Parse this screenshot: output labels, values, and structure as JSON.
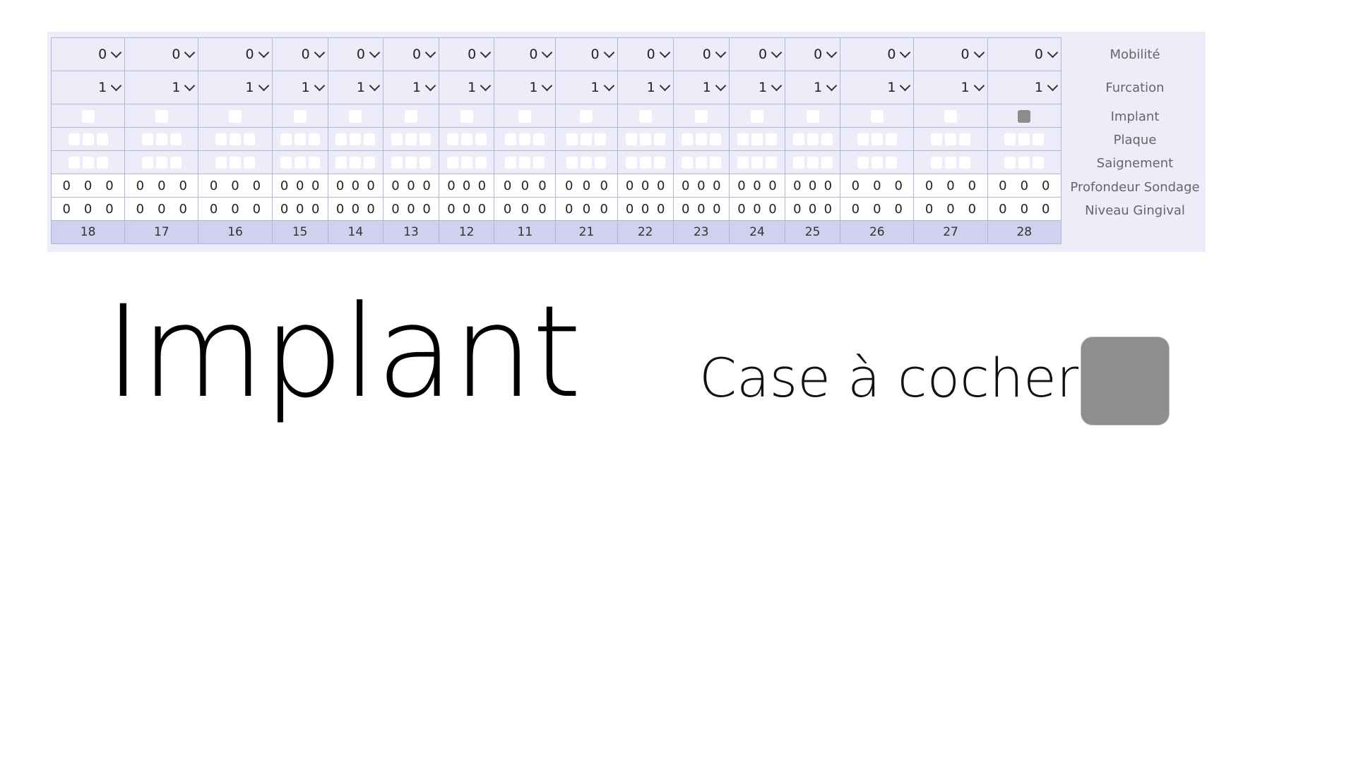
{
  "teeth": [
    "18",
    "17",
    "16",
    "15",
    "14",
    "13",
    "12",
    "11",
    "21",
    "22",
    "23",
    "24",
    "25",
    "26",
    "27",
    "28"
  ],
  "row_labels": {
    "mobilite": "Mobilité",
    "furcation": "Furcation",
    "implant": "Implant",
    "plaque": "Plaque",
    "saignement": "Saignement",
    "profondeur": "Profondeur Sondage",
    "niveau": "Niveau Gingival"
  },
  "mobilite_values": [
    "0",
    "0",
    "0",
    "0",
    "0",
    "0",
    "0",
    "0",
    "0",
    "0",
    "0",
    "0",
    "0",
    "0",
    "0",
    "0"
  ],
  "furcation_values": [
    "1",
    "1",
    "1",
    "1",
    "1",
    "1",
    "1",
    "1",
    "1",
    "1",
    "1",
    "1",
    "1",
    "1",
    "1",
    "1"
  ],
  "implant_checked": [
    false,
    false,
    false,
    false,
    false,
    false,
    false,
    false,
    false,
    false,
    false,
    false,
    false,
    false,
    false,
    true
  ],
  "profondeur_values": [
    [
      "0",
      "0",
      "0"
    ],
    [
      "0",
      "0",
      "0"
    ],
    [
      "0",
      "0",
      "0"
    ],
    [
      "0",
      "0",
      "0"
    ],
    [
      "0",
      "0",
      "0"
    ],
    [
      "0",
      "0",
      "0"
    ],
    [
      "0",
      "0",
      "0"
    ],
    [
      "0",
      "0",
      "0"
    ],
    [
      "0",
      "0",
      "0"
    ],
    [
      "0",
      "0",
      "0"
    ],
    [
      "0",
      "0",
      "0"
    ],
    [
      "0",
      "0",
      "0"
    ],
    [
      "0",
      "0",
      "0"
    ],
    [
      "0",
      "0",
      "0"
    ],
    [
      "0",
      "0",
      "0"
    ],
    [
      "0",
      "0",
      "0"
    ]
  ],
  "niveau_values": [
    [
      "0",
      "0",
      "0"
    ],
    [
      "0",
      "0",
      "0"
    ],
    [
      "0",
      "0",
      "0"
    ],
    [
      "0",
      "0",
      "0"
    ],
    [
      "0",
      "0",
      "0"
    ],
    [
      "0",
      "0",
      "0"
    ],
    [
      "0",
      "0",
      "0"
    ],
    [
      "0",
      "0",
      "0"
    ],
    [
      "0",
      "0",
      "0"
    ],
    [
      "0",
      "0",
      "0"
    ],
    [
      "0",
      "0",
      "0"
    ],
    [
      "0",
      "0",
      "0"
    ],
    [
      "0",
      "0",
      "0"
    ],
    [
      "0",
      "0",
      "0"
    ],
    [
      "0",
      "0",
      "0"
    ],
    [
      "0",
      "0",
      "0"
    ]
  ],
  "big_title": "Implant",
  "checkbox_caption": "Case à cocher :",
  "big_checkbox_checked": true,
  "colors": {
    "panel_bg": "#ecedf9",
    "grid_border": "#b3b6dc",
    "teeth_row_bg": "#cfd1ee",
    "checked_fill": "#8c8c8c"
  },
  "icons": {
    "dropdown": "chevron-down-icon"
  }
}
